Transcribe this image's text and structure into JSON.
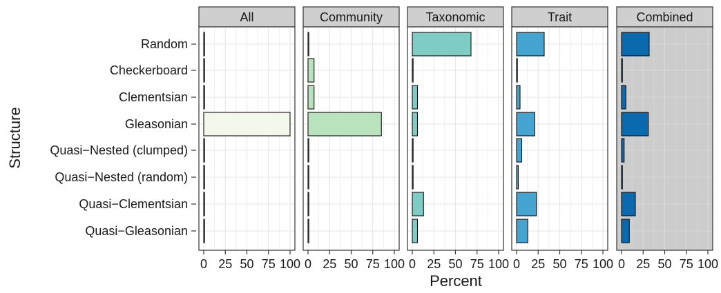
{
  "chart_data": {
    "type": "bar",
    "orientation": "horizontal",
    "xlabel": "Percent",
    "ylabel": "Structure",
    "xlim": [
      0,
      100
    ],
    "xticks": [
      "0",
      "25",
      "50",
      "75",
      "100"
    ],
    "categories": [
      "Random",
      "Checkerboard",
      "Clementsian",
      "Gleasonian",
      "Quasi−Nested (clumped)",
      "Quasi−Nested (random)",
      "Quasi−Clementsian",
      "Quasi−Gleasonian"
    ],
    "grid": true,
    "panels": [
      {
        "name": "All",
        "color": "#f2f9ea",
        "background": "#ffffff",
        "values": [
          0,
          0,
          0,
          100,
          0,
          0,
          0,
          0
        ]
      },
      {
        "name": "Community",
        "color": "#b9e3bd",
        "background": "#ffffff",
        "values": [
          0,
          7,
          7,
          85,
          0,
          0,
          0,
          0
        ]
      },
      {
        "name": "Taxonomic",
        "color": "#7fccc4",
        "background": "#ffffff",
        "values": [
          68,
          0,
          6,
          6,
          0,
          0,
          13,
          6
        ]
      },
      {
        "name": "Trait",
        "color": "#45a5d0",
        "background": "#ffffff",
        "values": [
          32,
          0,
          4,
          21,
          6,
          2,
          23,
          13
        ]
      },
      {
        "name": "Combined",
        "color": "#0b69ae",
        "background": "#cccccc",
        "values": [
          32,
          1,
          5,
          31,
          3,
          1,
          16,
          9
        ]
      }
    ]
  }
}
